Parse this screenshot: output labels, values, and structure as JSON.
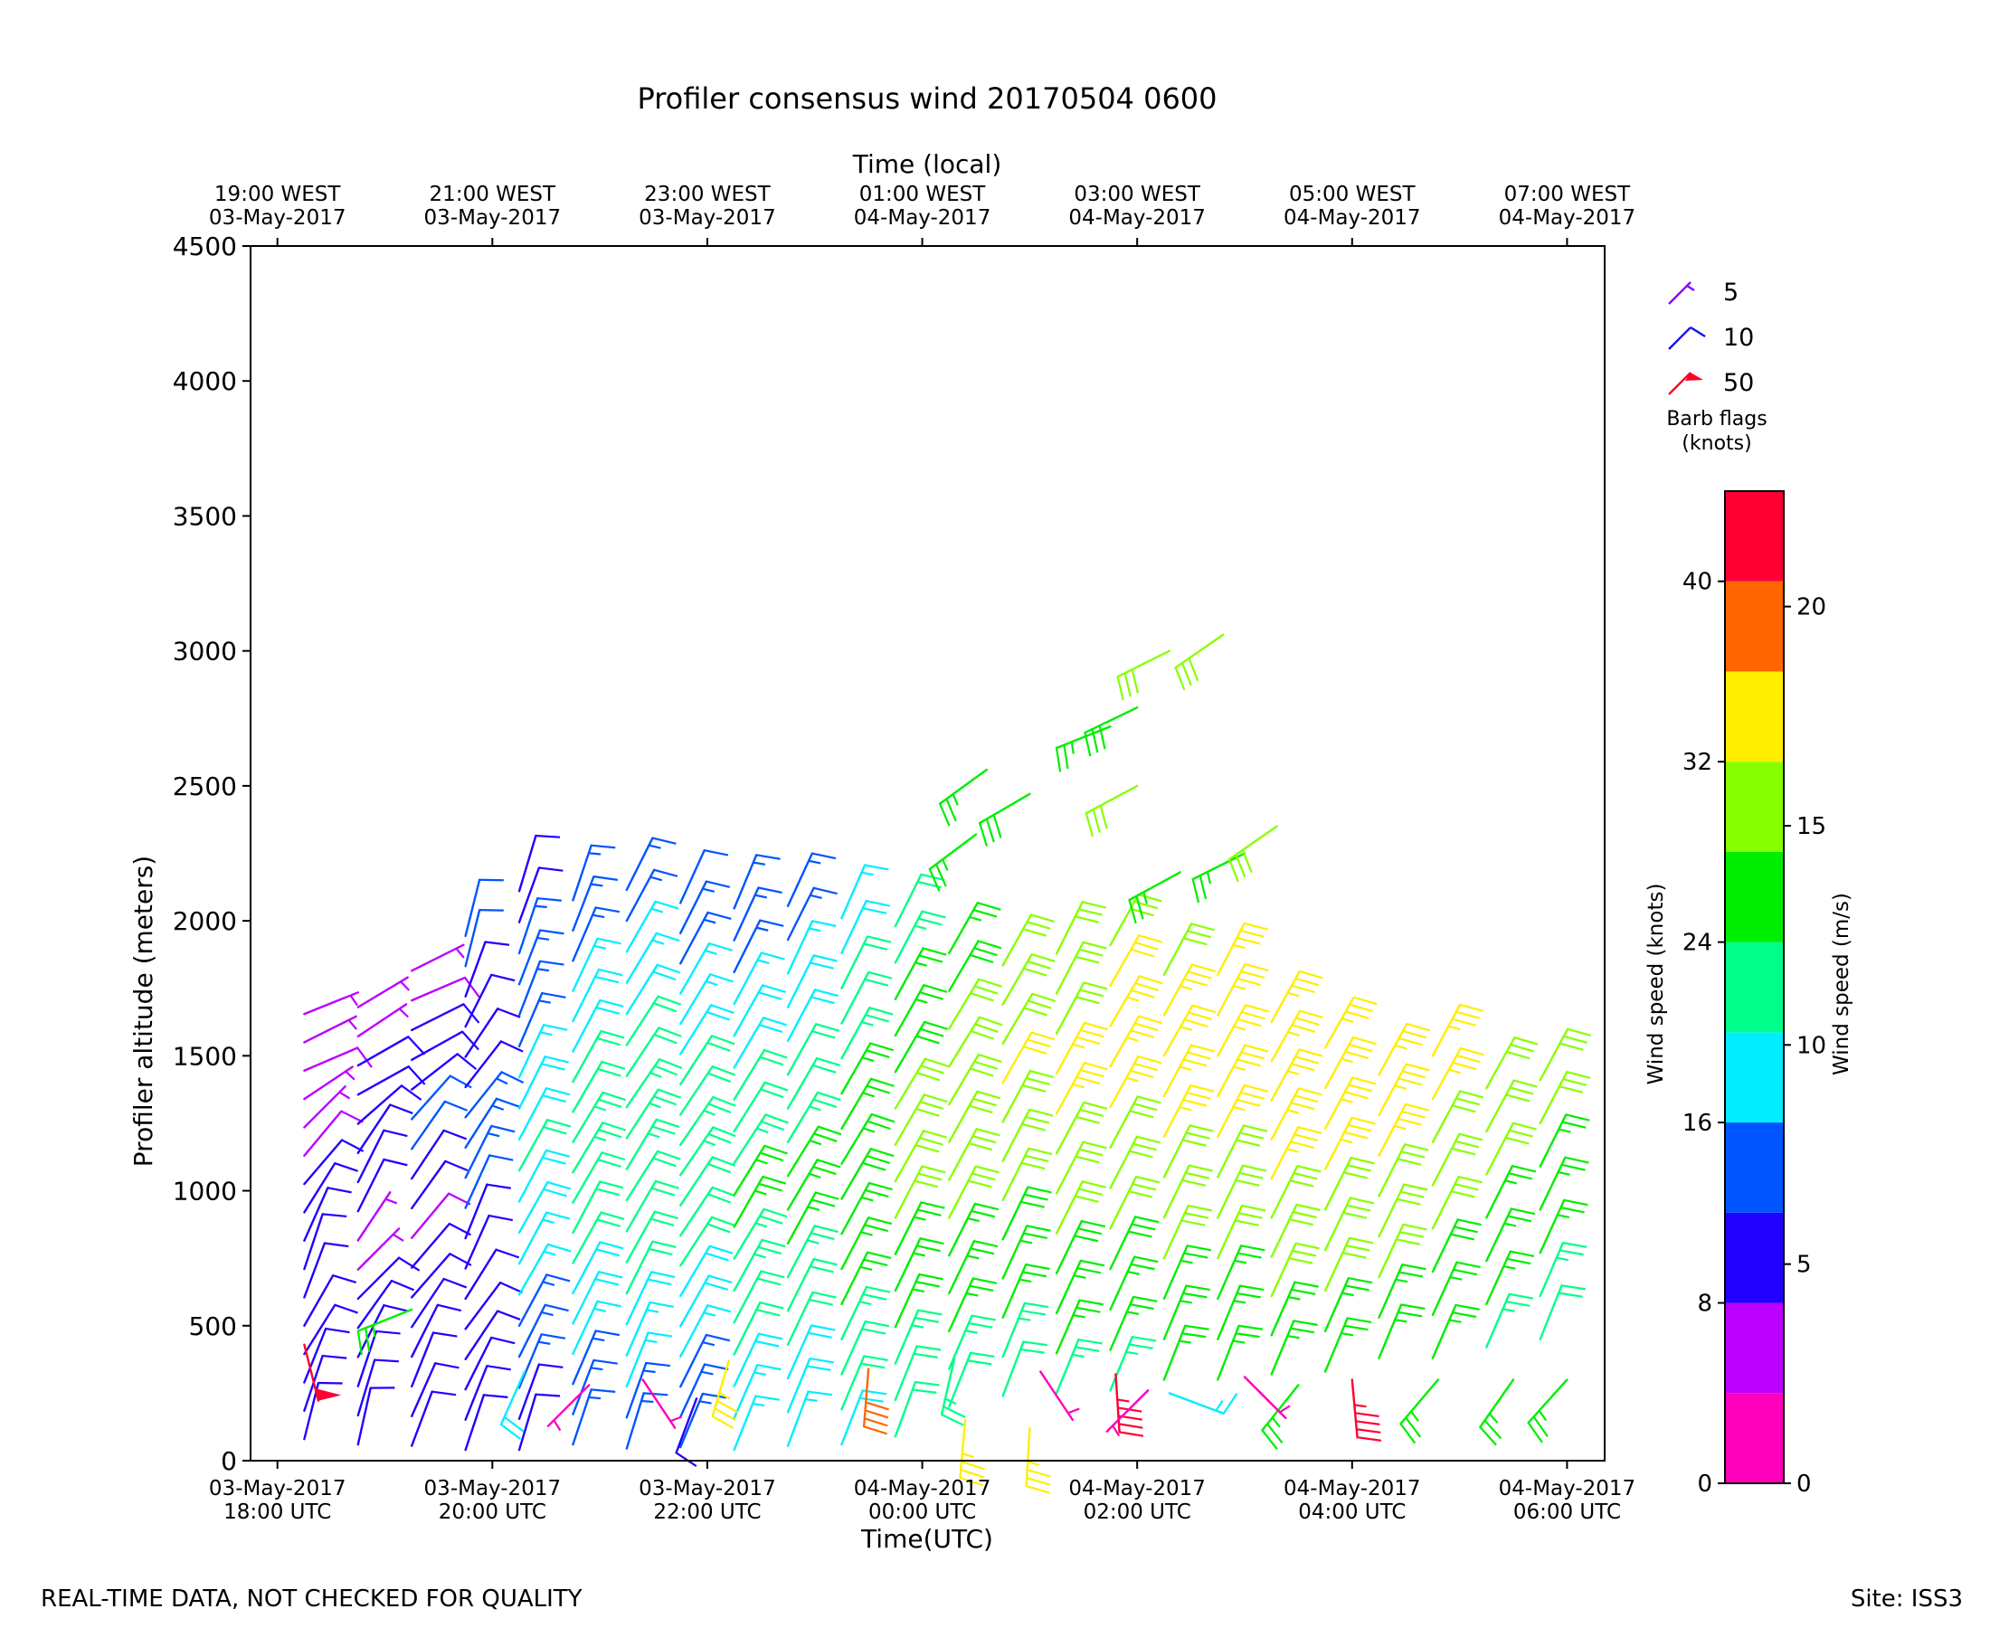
{
  "chart_data": {
    "type": "wind-barb",
    "title": "Profiler consensus wind 20170504 0600",
    "xlabel": "Time(UTC)",
    "xlabel_top": "Time (local)",
    "ylabel": "Profiler altitude (meters)",
    "ylim": [
      0,
      4500
    ],
    "yticks": [
      0,
      500,
      1000,
      1500,
      2000,
      2500,
      3000,
      3500,
      4000,
      4500
    ],
    "x_range_hours": [
      -0.25,
      12.35
    ],
    "xticks_utc": [
      {
        "h": 0,
        "line1": "03-May-2017",
        "line2": "18:00 UTC"
      },
      {
        "h": 2,
        "line1": "03-May-2017",
        "line2": "20:00 UTC"
      },
      {
        "h": 4,
        "line1": "03-May-2017",
        "line2": "22:00 UTC"
      },
      {
        "h": 6,
        "line1": "04-May-2017",
        "line2": "00:00 UTC"
      },
      {
        "h": 8,
        "line1": "04-May-2017",
        "line2": "02:00 UTC"
      },
      {
        "h": 10,
        "line1": "04-May-2017",
        "line2": "04:00 UTC"
      },
      {
        "h": 12,
        "line1": "04-May-2017",
        "line2": "06:00 UTC"
      }
    ],
    "xticks_local": [
      {
        "h": 0,
        "line1": "19:00 WEST",
        "line2": "03-May-2017"
      },
      {
        "h": 2,
        "line1": "21:00 WEST",
        "line2": "03-May-2017"
      },
      {
        "h": 4,
        "line1": "23:00 WEST",
        "line2": "03-May-2017"
      },
      {
        "h": 6,
        "line1": "01:00 WEST",
        "line2": "04-May-2017"
      },
      {
        "h": 8,
        "line1": "03:00 WEST",
        "line2": "04-May-2017"
      },
      {
        "h": 10,
        "line1": "05:00 WEST",
        "line2": "04-May-2017"
      },
      {
        "h": 12,
        "line1": "07:00 WEST",
        "line2": "04-May-2017"
      }
    ],
    "barb_legend": {
      "items": [
        {
          "label": "5",
          "speed": 5,
          "color": "#8800ff"
        },
        {
          "label": "10",
          "speed": 10,
          "color": "#1111ee"
        },
        {
          "label": "50",
          "speed": 50,
          "color": "#ff0022"
        }
      ],
      "title_line1": "Barb flags",
      "title_line2": "(knots)"
    },
    "colorbar": {
      "label_left": "Wind speed (knots)",
      "label_right": "Wind speed (m/s)",
      "bounds_knots": [
        0,
        4,
        8,
        12,
        16,
        20,
        24,
        28,
        32,
        36,
        40,
        44
      ],
      "colors": [
        "#ff00bb",
        "#bb00ff",
        "#2200ff",
        "#0055ff",
        "#00eeff",
        "#00ff88",
        "#00ee00",
        "#88ff00",
        "#ffee00",
        "#ff6600",
        "#ff0033"
      ],
      "ticks_knots": [
        "0",
        "8",
        "16",
        "24",
        "32",
        "40"
      ],
      "ticks_ms": [
        {
          "knots": 0,
          "label": "0"
        },
        {
          "knots": 9.72,
          "label": "5"
        },
        {
          "knots": 19.44,
          "label": "10"
        },
        {
          "knots": 29.16,
          "label": "15"
        },
        {
          "knots": 38.88,
          "label": "20"
        }
      ]
    },
    "profiles": [
      {
        "h": 0.25,
        "u": [
          -2,
          -3,
          -4,
          -5,
          -4,
          -3,
          -3,
          -4,
          -5,
          -6,
          -5,
          -5,
          -6,
          -7,
          -6,
          -5
        ],
        "v": [
          -8,
          -9,
          -10,
          -8,
          -7,
          -8,
          -9,
          -9,
          -8,
          -7,
          -6,
          -5,
          -4,
          -3,
          -3,
          -2
        ],
        "z0": 80,
        "dz": 105,
        "lowSpeed": [
          2,
          3,
          45,
          4
        ]
      },
      {
        "h": 0.75,
        "u": [
          -2,
          -3,
          -3,
          -4,
          -5,
          -6,
          -5,
          -4,
          -4,
          -5,
          -6,
          -8,
          -9,
          -7,
          -6,
          -5
        ],
        "v": [
          -9,
          -10,
          -9,
          -8,
          -7,
          -6,
          -5,
          -6,
          -8,
          -10,
          -9,
          -7,
          -5,
          -4,
          -4,
          -3
        ],
        "z0": 60,
        "dz": 108
      },
      {
        "h": 1.25,
        "u": [
          -3,
          -4,
          -4,
          -5,
          -6,
          -7,
          -6,
          -5,
          -5,
          -6,
          -7,
          -8,
          -9,
          -9,
          -8,
          -7,
          -6
        ],
        "v": [
          -8,
          -9,
          -10,
          -10,
          -9,
          -8,
          -7,
          -6,
          -7,
          -9,
          -10,
          -9,
          -7,
          -5,
          -4,
          -3,
          -3
        ],
        "z0": 55,
        "dz": 110
      },
      {
        "h": 1.75,
        "u": [
          -3,
          -4,
          -5,
          -6,
          -6,
          -5,
          -4,
          -4,
          -5,
          -6,
          -7,
          -8,
          -7,
          -6,
          -5,
          -4,
          -3,
          -3
        ],
        "v": [
          -9,
          -10,
          -10,
          -9,
          -8,
          -8,
          -9,
          -10,
          -11,
          -12,
          -11,
          -10,
          -9,
          -9,
          -10,
          -11,
          -12,
          -12
        ],
        "z0": 40,
        "dz": 112
      },
      {
        "h": 2.25,
        "u": [
          -3,
          -4,
          -5,
          -6,
          -7,
          -8,
          -8,
          -9,
          -9,
          -10,
          -9,
          -8,
          -7,
          -6,
          -5,
          -5,
          -4,
          -4,
          -3
        ],
        "v": [
          -10,
          -11,
          -12,
          -12,
          -13,
          -14,
          -15,
          -16,
          -17,
          -18,
          -17,
          -16,
          -15,
          -14,
          -13,
          -13,
          -12,
          -11,
          -10
        ],
        "z0": 40,
        "dz": 115
      },
      {
        "h": 2.75,
        "u": [
          -4,
          -5,
          -6,
          -7,
          -8,
          -9,
          -10,
          -10,
          -11,
          -12,
          -12,
          -11,
          -10,
          -9,
          -8,
          -7,
          -6,
          -5,
          -4
        ],
        "v": [
          -12,
          -13,
          -14,
          -15,
          -16,
          -17,
          -18,
          -19,
          -19,
          -20,
          -20,
          -19,
          -18,
          -17,
          -16,
          -15,
          -14,
          -13,
          -12
        ],
        "z0": 60,
        "dz": 112
      },
      {
        "h": 3.25,
        "u": [
          -4,
          -5,
          -6,
          -7,
          -8,
          -9,
          -10,
          -11,
          -12,
          -12,
          -13,
          -13,
          -12,
          -11,
          -10,
          -9,
          -8,
          -7,
          -6
        ],
        "v": [
          -13,
          -14,
          -15,
          -16,
          -17,
          -18,
          -18,
          -19,
          -19,
          -20,
          -20,
          -19,
          -18,
          -17,
          -16,
          -15,
          -14,
          -13,
          -12
        ],
        "z0": 45,
        "dz": 115
      },
      {
        "h": 3.75,
        "u": [
          -5,
          -6,
          -7,
          -8,
          -9,
          -10,
          -11,
          -12,
          -12,
          -13,
          -13,
          -12,
          -11,
          -10,
          -9,
          -8,
          -7,
          -6,
          -5
        ],
        "v": [
          -12,
          -13,
          -14,
          -15,
          -16,
          -17,
          -17,
          -18,
          -18,
          -19,
          -19,
          -18,
          -17,
          -16,
          -15,
          -14,
          -13,
          -12,
          -11
        ],
        "z0": 50,
        "dz": 112
      },
      {
        "h": 4.25,
        "u": [
          -6,
          -7,
          -8,
          -9,
          -10,
          -11,
          -12,
          -12,
          -13,
          -13,
          -12,
          -11,
          -10,
          -9,
          -8,
          -7,
          -6,
          -5
        ],
        "v": [
          -15,
          -16,
          -17,
          -18,
          -19,
          -20,
          -20,
          -21,
          -21,
          -20,
          -19,
          -18,
          -17,
          -16,
          -15,
          -14,
          -13,
          -12
        ],
        "z0": 40,
        "dz": 118
      },
      {
        "h": 4.75,
        "u": [
          -6,
          -7,
          -8,
          -9,
          -10,
          -11,
          -12,
          -13,
          -13,
          -12,
          -11,
          -10,
          -9,
          -8,
          -7,
          -7,
          -6
        ],
        "v": [
          -16,
          -17,
          -18,
          -19,
          -20,
          -21,
          -22,
          -22,
          -21,
          -20,
          -19,
          -18,
          -17,
          -16,
          -15,
          -14,
          -13
        ],
        "z0": 55,
        "dz": 125
      },
      {
        "h": 5.25,
        "u": [
          -7,
          -8,
          -9,
          -10,
          -11,
          -12,
          -13,
          -14,
          -14,
          -13,
          -12,
          -11,
          -10,
          -9,
          -8,
          -7
        ],
        "v": [
          -18,
          -19,
          -20,
          -21,
          -22,
          -23,
          -24,
          -24,
          -23,
          -22,
          -21,
          -20,
          -19,
          -18,
          -17,
          -16
        ],
        "z0": 60,
        "dz": 130
      },
      {
        "h": 5.75,
        "u": [
          -7,
          -8,
          -9,
          -10,
          -11,
          -12,
          -13,
          -14,
          -15,
          -15,
          -14,
          -13,
          -12,
          -11,
          -10
        ],
        "v": [
          -19,
          -20,
          -21,
          -22,
          -23,
          -24,
          -25,
          -25,
          -26,
          -25,
          -24,
          -23,
          -22,
          -21,
          -20
        ],
        "z0": 90,
        "dz": 135
      },
      {
        "h": 6.25,
        "u": [
          -8,
          -9,
          -10,
          -11,
          -12,
          -13,
          -14,
          -15,
          -16,
          -16,
          -15,
          -14,
          -13
        ],
        "v": [
          -20,
          -21,
          -22,
          -23,
          -24,
          -25,
          -26,
          -27,
          -27,
          -26,
          -25,
          -24,
          -23
        ],
        "z0": 200,
        "dz": 140
      },
      {
        "h": 6.75,
        "u": [
          -8,
          -9,
          -10,
          -11,
          -12,
          -13,
          -14,
          -15,
          -16,
          -16,
          -15,
          -14
        ],
        "v": [
          -21,
          -22,
          -23,
          -24,
          -25,
          -26,
          -27,
          -28,
          -28,
          -27,
          -26,
          -25
        ],
        "z0": 240,
        "dz": 145
      },
      {
        "h": 7.25,
        "u": [
          -9,
          -10,
          -11,
          -12,
          -13,
          -14,
          -15,
          -16,
          -16,
          -15,
          -14,
          -13
        ],
        "v": [
          -22,
          -23,
          -24,
          -25,
          -26,
          -27,
          -28,
          -29,
          -29,
          -28,
          -27,
          -26
        ],
        "z0": 250,
        "dz": 148
      },
      {
        "h": 7.75,
        "u": [
          -9,
          -10,
          -11,
          -12,
          -13,
          -14,
          -15,
          -16,
          -17,
          -17,
          -16,
          -15
        ],
        "v": [
          -22,
          -23,
          -24,
          -25,
          -26,
          -27,
          -28,
          -29,
          -30,
          -29,
          -28,
          -27
        ],
        "z0": 260,
        "dz": 150
      },
      {
        "h": 8.25,
        "u": [
          -9,
          -10,
          -11,
          -12,
          -13,
          -14,
          -15,
          -16,
          -17,
          -16,
          -15
        ],
        "v": [
          -23,
          -24,
          -25,
          -26,
          -27,
          -28,
          -29,
          -30,
          -30,
          -29,
          -28
        ],
        "z0": 300,
        "dz": 150
      },
      {
        "h": 8.75,
        "u": [
          -9,
          -10,
          -11,
          -12,
          -13,
          -14,
          -15,
          -16,
          -17,
          -16,
          -15
        ],
        "v": [
          -23,
          -24,
          -25,
          -26,
          -27,
          -28,
          -29,
          -30,
          -31,
          -30,
          -29
        ],
        "z0": 300,
        "dz": 150
      },
      {
        "h": 9.25,
        "u": [
          -10,
          -11,
          -12,
          -13,
          -14,
          -15,
          -16,
          -17,
          -17,
          -16
        ],
        "v": [
          -24,
          -25,
          -26,
          -27,
          -28,
          -29,
          -30,
          -31,
          -30,
          -29
        ],
        "z0": 320,
        "dz": 145
      },
      {
        "h": 9.75,
        "u": [
          -10,
          -11,
          -12,
          -13,
          -14,
          -15,
          -16,
          -17,
          -17
        ],
        "v": [
          -24,
          -25,
          -26,
          -27,
          -28,
          -29,
          -30,
          -31,
          -30
        ],
        "z0": 330,
        "dz": 150
      },
      {
        "h": 10.25,
        "u": [
          -10,
          -11,
          -12,
          -13,
          -14,
          -15,
          -16,
          -17
        ],
        "v": [
          -24,
          -25,
          -26,
          -27,
          -28,
          -29,
          -30,
          -31
        ],
        "z0": 380,
        "dz": 150
      },
      {
        "h": 10.75,
        "u": [
          -10,
          -11,
          -12,
          -13,
          -14,
          -15,
          -16,
          -16
        ],
        "v": [
          -23,
          -24,
          -25,
          -26,
          -27,
          -28,
          -29,
          -30
        ],
        "z0": 380,
        "dz": 160
      },
      {
        "h": 11.25,
        "u": [
          -9,
          -10,
          -11,
          -12,
          -13,
          -14,
          -15
        ],
        "v": [
          -21,
          -22,
          -23,
          -24,
          -25,
          -26,
          -27
        ],
        "z0": 420,
        "dz": 160
      },
      {
        "h": 11.75,
        "u": [
          -8,
          -9,
          -10,
          -11,
          -12,
          -13,
          -14
        ],
        "v": [
          -20,
          -21,
          -22,
          -23,
          -24,
          -25,
          -26
        ],
        "z0": 450,
        "dz": 160
      }
    ],
    "extra_barbs": [
      {
        "h": 0.25,
        "z": 430,
        "u": -12,
        "v": 48
      },
      {
        "h": 1.25,
        "z": 560,
        "u": 25,
        "v": 10
      },
      {
        "h": 6.5,
        "z": 2320,
        "u": 20,
        "v": 15
      },
      {
        "h": 6.6,
        "z": 2560,
        "u": 22,
        "v": 16
      },
      {
        "h": 7.0,
        "z": 2470,
        "u": 24,
        "v": 14
      },
      {
        "h": 7.75,
        "z": 2720,
        "u": 25,
        "v": 10
      },
      {
        "h": 8.0,
        "z": 2790,
        "u": 25,
        "v": 12
      },
      {
        "h": 8.3,
        "z": 3000,
        "u": 28,
        "v": 14
      },
      {
        "h": 8.8,
        "z": 3060,
        "u": 26,
        "v": 18
      },
      {
        "h": 8.0,
        "z": 2500,
        "u": 26,
        "v": 14
      },
      {
        "h": 8.4,
        "z": 2180,
        "u": 22,
        "v": 12
      },
      {
        "h": 9.0,
        "z": 2250,
        "u": 24,
        "v": 12
      },
      {
        "h": 9.3,
        "z": 2350,
        "u": 26,
        "v": 18
      },
      {
        "h": 7.8,
        "z": 320,
        "u": -3,
        "v": 46
      },
      {
        "h": 10.0,
        "z": 300,
        "u": -4,
        "v": 44
      },
      {
        "h": 8.1,
        "z": 260,
        "u": 2,
        "v": 2
      },
      {
        "h": 7.1,
        "z": 330,
        "u": -2,
        "v": 3
      },
      {
        "h": 6.3,
        "z": 380,
        "u": 5,
        "v": 22
      },
      {
        "h": 5.5,
        "z": 340,
        "u": 3,
        "v": 38
      },
      {
        "h": 8.3,
        "z": 250,
        "u": -16,
        "v": 6
      },
      {
        "h": 11.5,
        "z": 300,
        "u": 14,
        "v": 20
      },
      {
        "h": 12.0,
        "z": 300,
        "u": 18,
        "v": 20
      },
      {
        "h": 4.2,
        "z": 370,
        "u": 10,
        "v": 34
      },
      {
        "h": 3.9,
        "z": 230,
        "u": 3,
        "v": 8
      },
      {
        "h": 3.4,
        "z": 300,
        "u": -2,
        "v": 3
      },
      {
        "h": 2.9,
        "z": 280,
        "u": 2,
        "v": 2
      },
      {
        "h": 2.3,
        "z": 330,
        "u": 8,
        "v": 18
      },
      {
        "h": 9.5,
        "z": 280,
        "u": 16,
        "v": 20
      },
      {
        "h": 9.0,
        "z": 310,
        "u": -2,
        "v": 2
      },
      {
        "h": 10.8,
        "z": 300,
        "u": 17,
        "v": 20
      },
      {
        "h": 6.4,
        "z": 150,
        "u": 3,
        "v": 34
      },
      {
        "h": 7.0,
        "z": 120,
        "u": 2,
        "v": 34
      }
    ]
  },
  "footer": {
    "left": "REAL-TIME DATA, NOT CHECKED FOR QUALITY",
    "right": "Site: ISS3"
  }
}
